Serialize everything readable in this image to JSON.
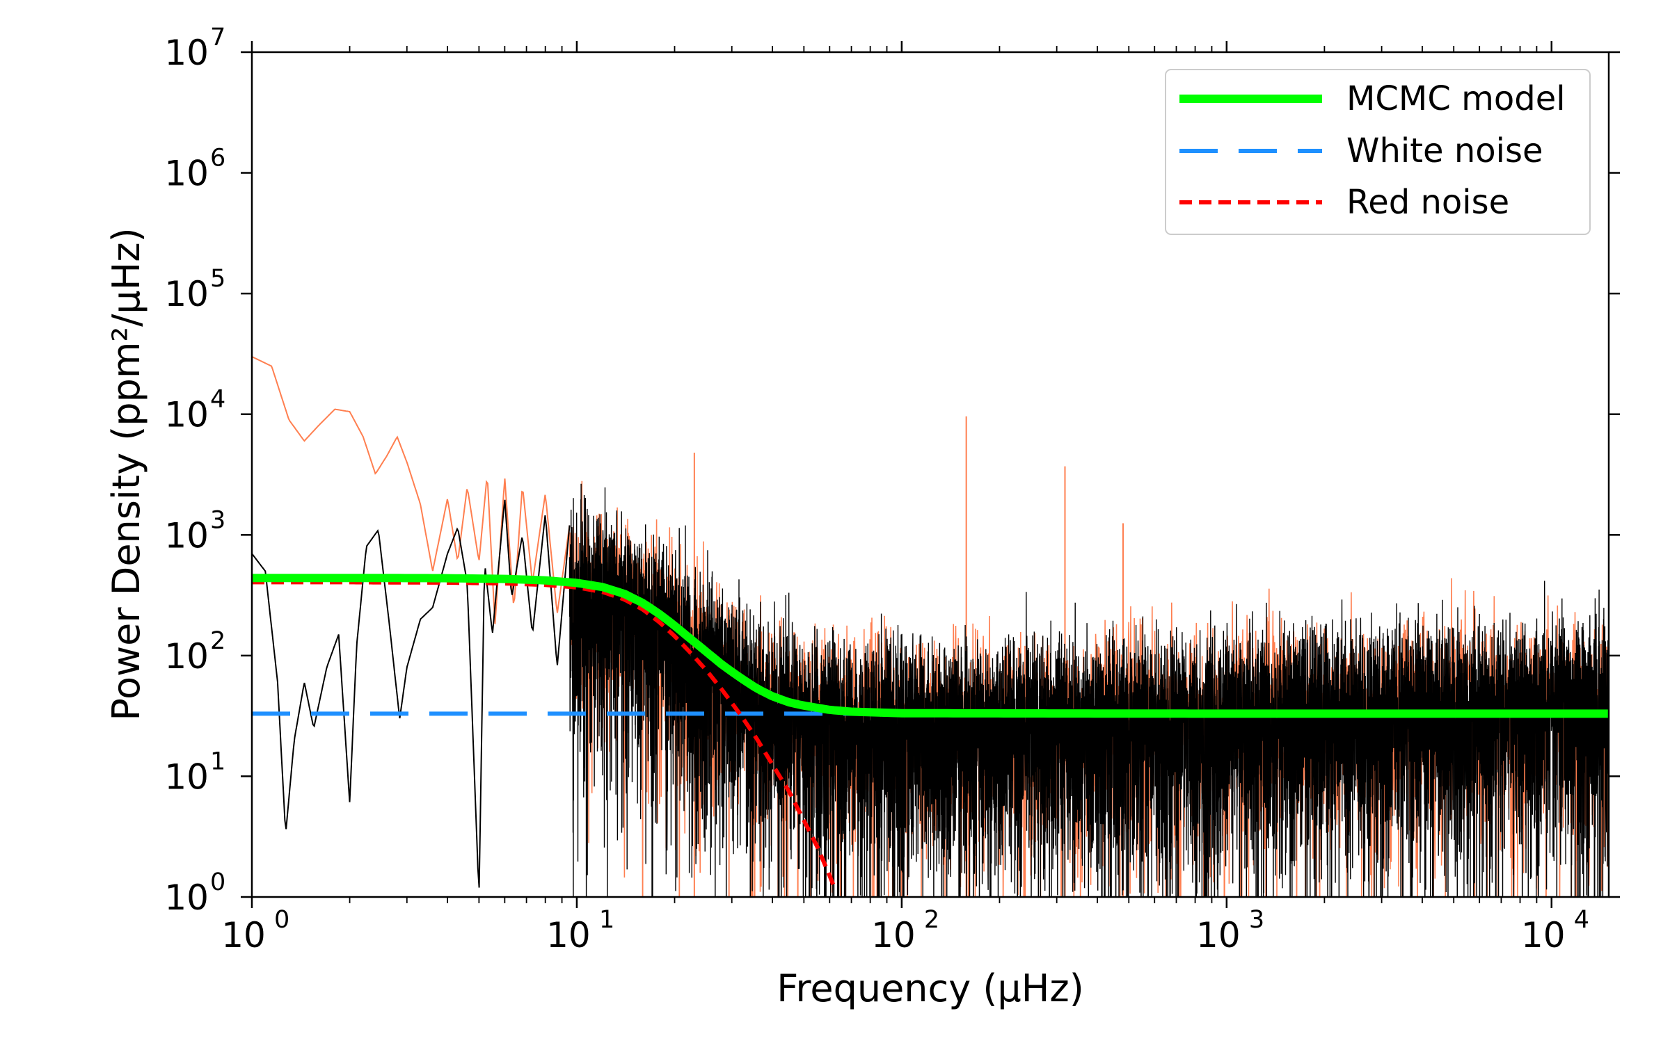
{
  "chart_data": {
    "type": "line",
    "xlabel": "Frequency (μHz)",
    "ylabel": "Power Density (ppm²/μHz)",
    "xscale": "log",
    "yscale": "log",
    "xlim": [
      1,
      15000
    ],
    "ylim": [
      1,
      10000000
    ],
    "grid": false,
    "legend_position": "top-right",
    "x_ticks": [
      {
        "value": 1,
        "base": "10",
        "exp": "0"
      },
      {
        "value": 10,
        "base": "10",
        "exp": "1"
      },
      {
        "value": 100,
        "base": "10",
        "exp": "2"
      },
      {
        "value": 1000,
        "base": "10",
        "exp": "3"
      },
      {
        "value": 10000,
        "base": "10",
        "exp": "4"
      }
    ],
    "y_ticks": [
      {
        "value": 1,
        "base": "10",
        "exp": "0"
      },
      {
        "value": 10,
        "base": "10",
        "exp": "1"
      },
      {
        "value": 100,
        "base": "10",
        "exp": "2"
      },
      {
        "value": 1000,
        "base": "10",
        "exp": "3"
      },
      {
        "value": 10000,
        "base": "10",
        "exp": "4"
      },
      {
        "value": 100000,
        "base": "10",
        "exp": "5"
      },
      {
        "value": 1000000,
        "base": "10",
        "exp": "6"
      },
      {
        "value": 10000000,
        "base": "10",
        "exp": "7"
      }
    ],
    "series": [
      {
        "name": "MCMC model",
        "role": "model",
        "color": "#00ff00",
        "style": "solid",
        "x": [
          1,
          2,
          4,
          6,
          8,
          10,
          12,
          14,
          16,
          18,
          20,
          22,
          25,
          28,
          32,
          36,
          40,
          45,
          50,
          60,
          70,
          100,
          1000,
          15000
        ],
        "y": [
          440,
          440,
          438,
          432,
          420,
          400,
          370,
          325,
          272,
          220,
          177,
          143,
          108,
          84,
          65,
          53,
          46,
          41,
          38.5,
          35.5,
          34.3,
          33.3,
          33,
          33
        ]
      },
      {
        "name": "White noise",
        "role": "white",
        "color": "#1e90ff",
        "style": "dashed",
        "x": [
          1,
          15000
        ],
        "y": [
          33,
          33
        ]
      },
      {
        "name": "Red noise",
        "role": "red",
        "color": "#ff0000",
        "style": "dotted",
        "x": [
          1,
          2,
          4,
          6,
          8,
          10,
          12,
          14,
          16,
          18,
          20,
          22,
          25,
          28,
          32,
          36,
          40,
          45,
          50,
          55,
          60,
          62
        ],
        "y": [
          405,
          405,
          402,
          396,
          385,
          367,
          337,
          292,
          240,
          188,
          145,
          111,
          76,
          52,
          32,
          20,
          12.5,
          7.5,
          4.3,
          2.6,
          1.5,
          1.2
        ]
      },
      {
        "role": "spectrum-orange",
        "color": "#ff7f50",
        "x": [
          1.0,
          1.15,
          1.3,
          1.45,
          1.6,
          1.8,
          2.0,
          2.2,
          2.4,
          2.6,
          2.8,
          3.0,
          3.3,
          3.6,
          4.0,
          4.3,
          4.6,
          5.0,
          5.3,
          5.6,
          6.0,
          6.4,
          6.8,
          7.3,
          8.0,
          8.7,
          9.5
        ],
        "y": [
          30000,
          25000,
          9000,
          6000,
          8000,
          11000,
          10500,
          6500,
          3200,
          4500,
          6500,
          4000,
          1800,
          500,
          2000,
          600,
          2500,
          600,
          3200,
          180,
          3000,
          240,
          2600,
          400,
          2200,
          220,
          1200
        ]
      },
      {
        "role": "spectrum-black",
        "color": "#000000",
        "x": [
          1.0,
          1.1,
          1.2,
          1.27,
          1.35,
          1.45,
          1.55,
          1.7,
          1.85,
          2.0,
          2.1,
          2.25,
          2.45,
          2.65,
          2.85,
          3.0,
          3.3,
          3.6,
          4.0,
          4.3,
          4.6,
          5.0,
          5.2,
          5.5,
          6.0,
          6.3,
          6.8,
          7.3,
          8.0,
          8.7,
          9.5
        ],
        "y": [
          700,
          500,
          60,
          3.3,
          20,
          60,
          25,
          80,
          150,
          6,
          120,
          800,
          1100,
          180,
          30,
          80,
          200,
          250,
          700,
          1150,
          400,
          1,
          600,
          150,
          2000,
          300,
          1000,
          150,
          1500,
          80,
          1200
        ]
      },
      {
        "role": "spectrum-orange-spikes",
        "color": "#ff7f50",
        "x": [
          23,
          158,
          318,
          480
        ],
        "y": [
          4800,
          9600,
          3700,
          1250
        ]
      }
    ]
  }
}
